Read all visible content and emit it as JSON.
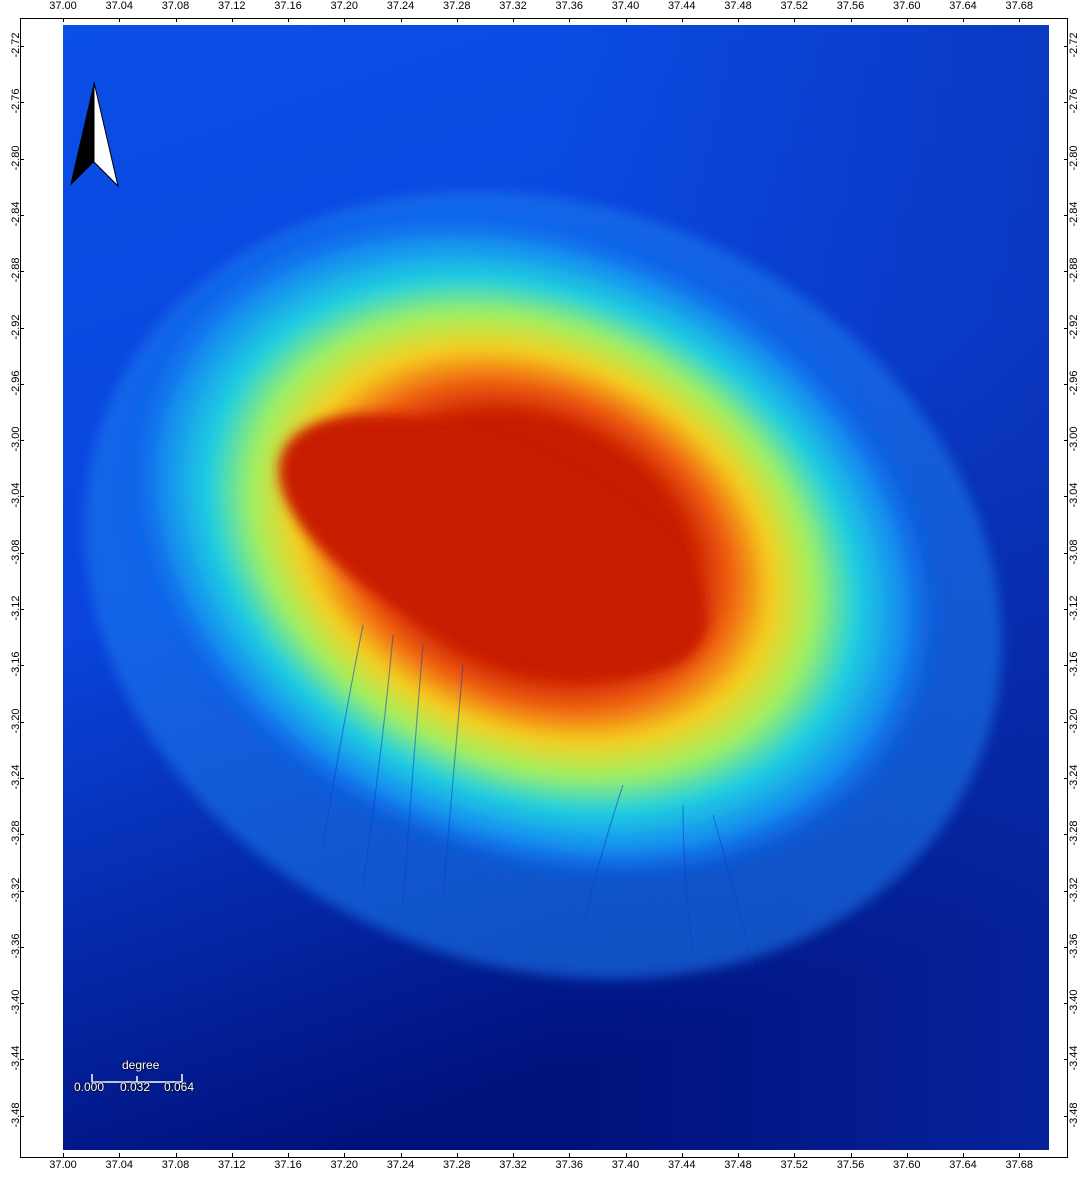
{
  "map": {
    "x_ticks": [
      "37.00",
      "37.04",
      "37.08",
      "37.12",
      "37.16",
      "37.20",
      "37.24",
      "37.28",
      "37.32",
      "37.36",
      "37.40",
      "37.44",
      "37.48",
      "37.52",
      "37.56",
      "37.60",
      "37.64",
      "37.68"
    ],
    "y_ticks": [
      "-2.72",
      "-2.76",
      "-2.80",
      "-2.84",
      "-2.88",
      "-2.92",
      "-2.96",
      "-3.00",
      "-3.04",
      "-3.08",
      "-3.12",
      "-3.16",
      "-3.20",
      "-3.24",
      "-3.28",
      "-3.32",
      "-3.36",
      "-3.40",
      "-3.44",
      "-3.48"
    ],
    "colors": {
      "low": "#00107a",
      "mid_low": "#0a5cf0",
      "mid": "#1fc8e8",
      "mid_high": "#f0e020",
      "high": "#c81a00"
    }
  },
  "scalebar": {
    "unit": "degree",
    "labels": [
      "0.000",
      "0.032",
      "0.064"
    ]
  },
  "north_arrow": {
    "icon": "north-arrow-icon"
  }
}
